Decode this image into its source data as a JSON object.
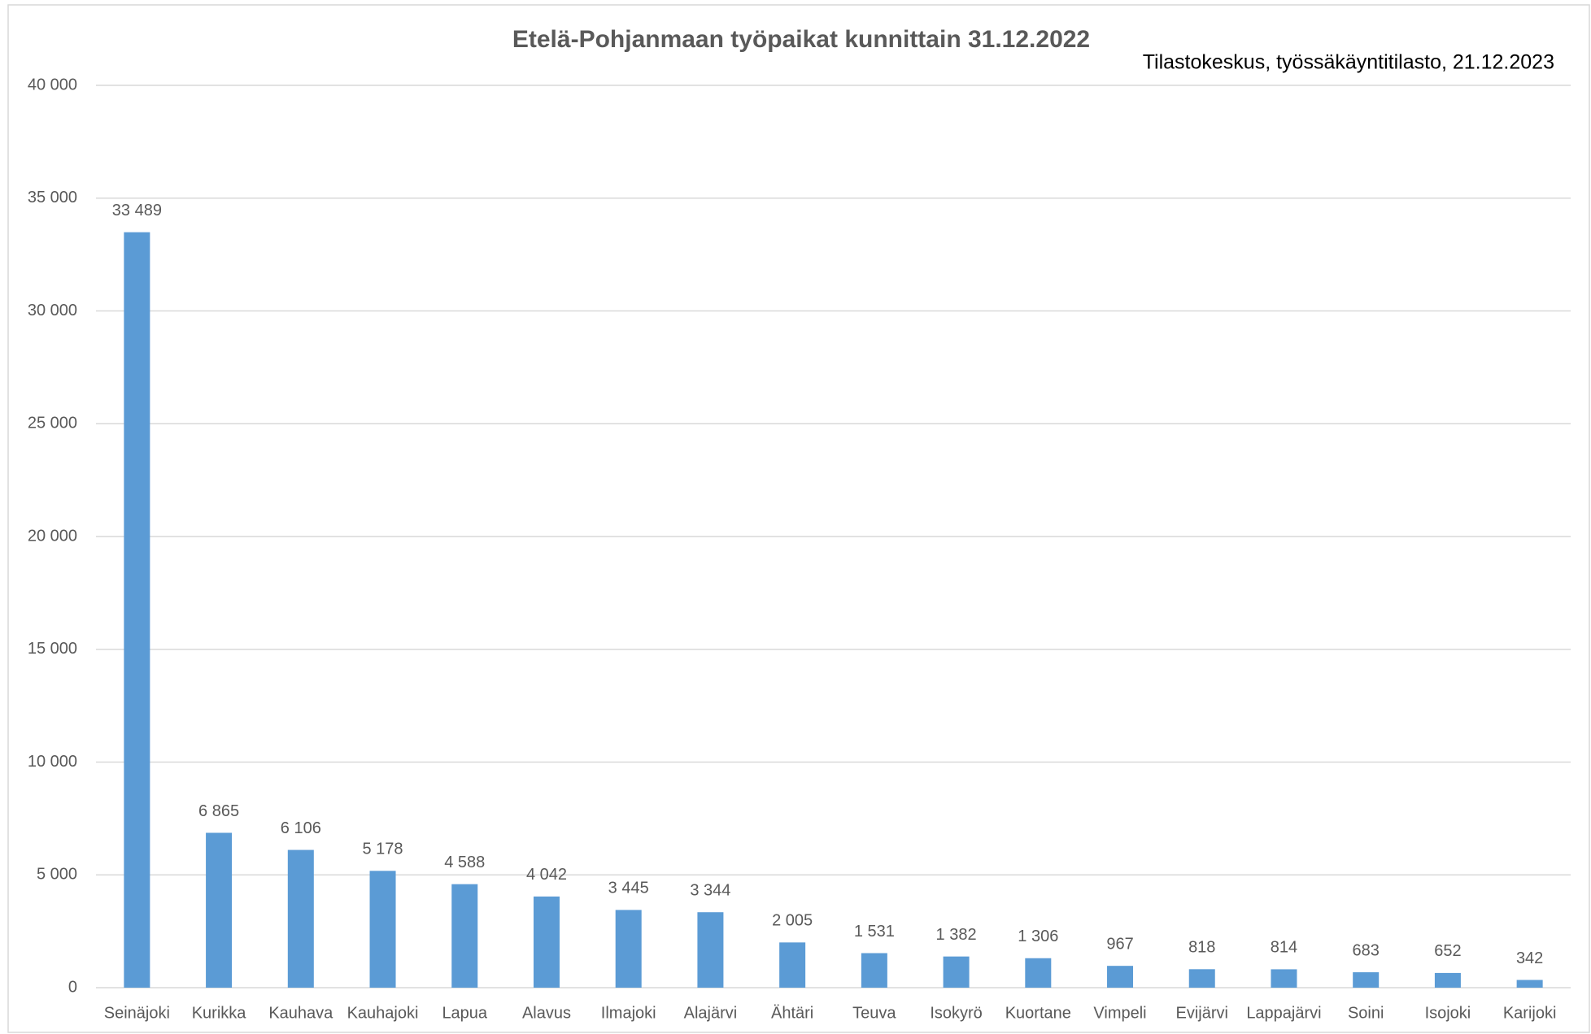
{
  "chart_data": {
    "type": "bar",
    "title": "Etelä-Pohjanmaan työpaikat kunnittain 31.12.2022",
    "subtitle": "Tilastokeskus, työssäkäyntitilasto, 21.12.2023",
    "categories": [
      "Seinäjoki",
      "Kurikka",
      "Kauhava",
      "Kauhajoki",
      "Lapua",
      "Alavus",
      "Ilmajoki",
      "Alajärvi",
      "Ähtäri",
      "Teuva",
      "Isokyrö",
      "Kuortane",
      "Vimpeli",
      "Evijärvi",
      "Lappajärvi",
      "Soini",
      "Isojoki",
      "Karijoki"
    ],
    "values": [
      33489,
      6865,
      6106,
      5178,
      4588,
      4042,
      3445,
      3344,
      2005,
      1531,
      1382,
      1306,
      967,
      818,
      814,
      683,
      652,
      342
    ],
    "value_labels": [
      "33 489",
      "6 865",
      "6 106",
      "5 178",
      "4 588",
      "4 042",
      "3 445",
      "3 344",
      "2 005",
      "1 531",
      "1 382",
      "1 306",
      "967",
      "818",
      "814",
      "683",
      "652",
      "342"
    ],
    "color": "#5b9bd5",
    "ylim": [
      0,
      40000
    ],
    "yticks": [
      0,
      {
        "value": 5000,
        "label": "5 000"
      },
      {
        "value": 10000,
        "label": "10 000"
      },
      {
        "value": 15000,
        "label": "15 000"
      },
      {
        "value": 20000,
        "label": "20 000"
      },
      {
        "value": 25000,
        "label": "25 000"
      },
      {
        "value": 30000,
        "label": "30 000"
      },
      {
        "value": 35000,
        "label": "35 000"
      },
      {
        "value": 40000,
        "label": "40 000"
      }
    ],
    "grid": true
  }
}
